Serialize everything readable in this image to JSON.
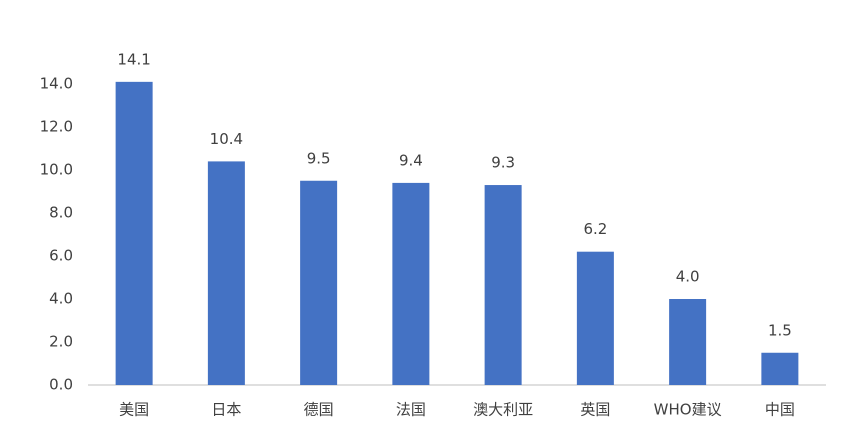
{
  "chart_data": {
    "type": "bar",
    "categories": [
      "美国",
      "日本",
      "德国",
      "法国",
      "澳大利亚",
      "英国",
      "WHO建议",
      "中国"
    ],
    "values": [
      14.1,
      10.4,
      9.5,
      9.4,
      9.3,
      6.2,
      4.0,
      1.5
    ],
    "value_labels": [
      "14.1",
      "10.4",
      "9.5",
      "9.4",
      "9.3",
      "6.2",
      "4.0",
      "1.5"
    ],
    "color": "#4472c4",
    "ylim": [
      0,
      14
    ],
    "yticks": [
      {
        "value": 0,
        "label": "0.0"
      },
      {
        "value": 2,
        "label": "2.0"
      },
      {
        "value": 4,
        "label": "4.0"
      },
      {
        "value": 6,
        "label": "6.0"
      },
      {
        "value": 8,
        "label": "8.0"
      },
      {
        "value": 10,
        "label": "10.0"
      },
      {
        "value": 12,
        "label": "12.0"
      },
      {
        "value": 14,
        "label": "14.0"
      }
    ],
    "grid": false
  }
}
